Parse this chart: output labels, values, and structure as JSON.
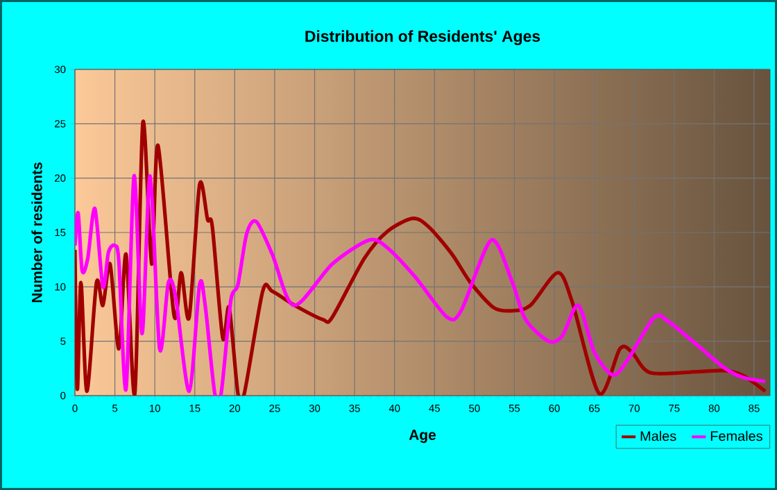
{
  "chart_data": {
    "type": "line",
    "title": "Distribution of Residents' Ages",
    "xlabel": "Age",
    "ylabel": "Number of residents",
    "xlim": [
      0,
      87
    ],
    "xticks": [
      0,
      5,
      10,
      15,
      20,
      25,
      30,
      35,
      40,
      45,
      50,
      55,
      60,
      65,
      70,
      75,
      80,
      85
    ],
    "ylim": [
      0,
      30
    ],
    "yticks": [
      0,
      5,
      10,
      15,
      20,
      25,
      30
    ],
    "grid": true,
    "legend": "bottom right",
    "marker": "none",
    "line_style": "solid",
    "series": [
      {
        "name": "Males",
        "color": "#a00000",
        "x": [
          0,
          0.3,
          0.75,
          1.5,
          2.7,
          3.5,
          4.4,
          5.5,
          6.4,
          7.5,
          8.5,
          9.6,
          10.4,
          12.4,
          13.3,
          14.3,
          15.6,
          16.6,
          17.2,
          18.5,
          19.3,
          20.4,
          21.2,
          23.5,
          24.7,
          27.5,
          31,
          32.2,
          36.2,
          39.1,
          42.3,
          44.3,
          47.2,
          49.5,
          52.4,
          54.7,
          57,
          60.4,
          62.2,
          65.6,
          68.2,
          69.7,
          72,
          77.8,
          81.2,
          83.5,
          86.4
        ],
        "values": [
          13.4,
          0.6,
          10.4,
          0.4,
          10.4,
          8.3,
          12.1,
          4.3,
          13,
          0.2,
          25.1,
          12.1,
          23,
          7.4,
          11.3,
          7.2,
          19.4,
          16.2,
          15.5,
          5.3,
          8.1,
          0.2,
          0.2,
          9.6,
          9.6,
          8.3,
          7,
          7.2,
          12.6,
          15.1,
          16.3,
          15.5,
          13,
          10.4,
          8.1,
          7.8,
          8.3,
          11.3,
          8.7,
          0.2,
          4.3,
          4,
          2.1,
          2.2,
          2.3,
          1.9,
          0.4
        ]
      },
      {
        "name": "Females",
        "color": "#ff00ff",
        "x": [
          0,
          0.4,
          0.9,
          1.6,
          2.5,
          3.5,
          4.2,
          5,
          5.5,
          6.4,
          7.4,
          8.4,
          9.4,
          10.6,
          11.7,
          12.6,
          14.3,
          15.6,
          16.3,
          17.5,
          18.3,
          19.5,
          20.4,
          21.5,
          22.7,
          24.7,
          27.4,
          32.2,
          36.8,
          39.1,
          42.6,
          46.6,
          48.4,
          52.1,
          54.7,
          56.4,
          59.3,
          61,
          63,
          65,
          67.3,
          69.1,
          72.5,
          74.3,
          77.8,
          81.2,
          83.5,
          86.4
        ],
        "values": [
          13.8,
          16.8,
          11.5,
          12.6,
          17.2,
          10,
          13.2,
          13.8,
          12.3,
          0.6,
          20.2,
          5.7,
          20.2,
          4.3,
          10.4,
          9.1,
          0.4,
          10.2,
          8.3,
          0.2,
          0.2,
          8.7,
          10.2,
          14.9,
          16,
          13,
          8.3,
          12.1,
          14.3,
          13.6,
          10.9,
          7.2,
          7.9,
          14.3,
          10.5,
          7,
          5,
          5.5,
          8.3,
          4,
          1.9,
          3.2,
          7.2,
          6.8,
          4.7,
          2.6,
          1.7,
          1.3
        ]
      }
    ]
  }
}
